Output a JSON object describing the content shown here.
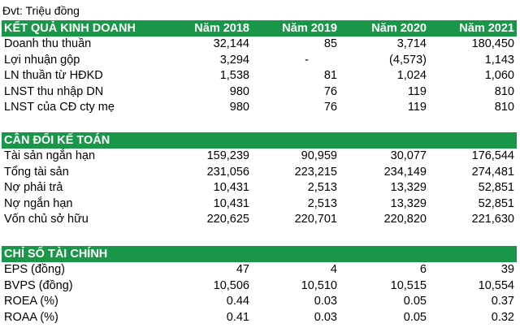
{
  "unit_label": "Đvt: Triệu đồng",
  "sections": [
    {
      "title": "KẾT QUẢ KINH DOANH",
      "years": [
        "Năm 2018",
        "Năm 2019",
        "Năm 2020",
        "Năm 2021"
      ],
      "rows": [
        {
          "label": "Doanh thu thuần",
          "values": [
            "32,144",
            "85",
            "3,714",
            "180,450"
          ]
        },
        {
          "label": "Lợi nhuận gộp",
          "values": [
            "3,294",
            "-",
            "(4,573)",
            "1,143"
          ]
        },
        {
          "label": "LN thuần từ HĐKD",
          "values": [
            "1,538",
            "81",
            "1,024",
            "1,060"
          ]
        },
        {
          "label": "LNST thu nhập DN",
          "values": [
            "980",
            "76",
            "119",
            "810"
          ]
        },
        {
          "label": "LNST của CĐ cty mẹ",
          "values": [
            "980",
            "76",
            "119",
            "810"
          ]
        }
      ]
    },
    {
      "title": "CÂN ĐỐI KẾ TOÁN",
      "years": [
        "",
        "",
        "",
        ""
      ],
      "rows": [
        {
          "label": "Tài sản ngắn hạn",
          "values": [
            "159,239",
            "90,959",
            "30,077",
            "176,544"
          ]
        },
        {
          "label": "Tổng tài sản",
          "values": [
            "231,056",
            "223,215",
            "234,149",
            "274,481"
          ]
        },
        {
          "label": "Nợ phải trả",
          "values": [
            "10,431",
            "2,513",
            "13,329",
            "52,851"
          ]
        },
        {
          "label": "Nợ ngắn hạn",
          "values": [
            "10,431",
            "2,513",
            "13,329",
            "52,851"
          ]
        },
        {
          "label": "Vốn chủ sở hữu",
          "values": [
            "220,625",
            "220,701",
            "220,820",
            "221,630"
          ]
        }
      ]
    },
    {
      "title": "CHỈ SỐ TÀI CHÍNH",
      "years": [
        "",
        "",
        "",
        ""
      ],
      "rows": [
        {
          "label": "EPS (đồng)",
          "values": [
            "47",
            "4",
            "6",
            "39"
          ]
        },
        {
          "label": "BVPS (đồng)",
          "values": [
            "10,506",
            "10,510",
            "10,515",
            "10,554"
          ]
        },
        {
          "label": "ROEA (%)",
          "values": [
            "0.44",
            "0.03",
            "0.05",
            "0.37"
          ]
        },
        {
          "label": "ROAA (%)",
          "values": [
            "0.41",
            "0.03",
            "0.05",
            "0.32"
          ]
        }
      ]
    }
  ],
  "colors": {
    "header_bg": "#1a9648",
    "header_text": "#ffffff",
    "body_text": "#000000"
  }
}
